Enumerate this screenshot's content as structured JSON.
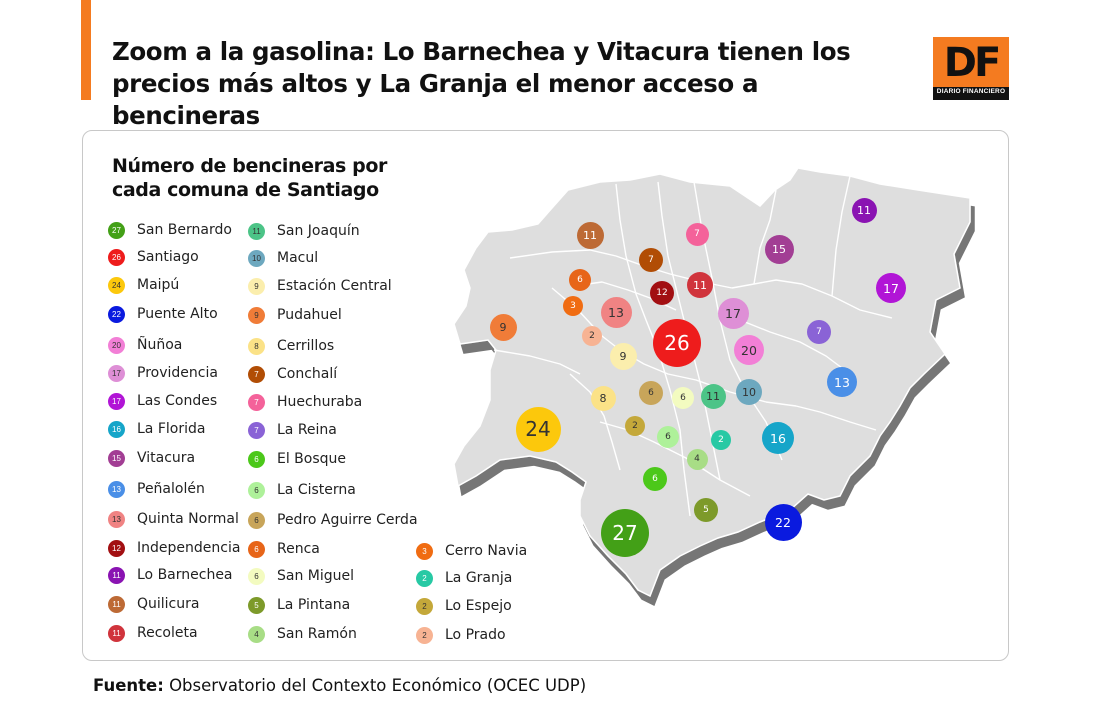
{
  "header": {
    "title_line1": "Zoom a la gasolina: Lo Barnechea y Vitacura tienen los",
    "title_line2": "precios más altos y La Granja el menor acceso a bencineras",
    "accent_color": "#f47b20"
  },
  "logo": {
    "letters": "DF",
    "subtitle": "DIARIO FINANCIERO",
    "color": "#f47b20"
  },
  "legend": {
    "title_line1": "Número de bencineras por",
    "title_line2": "cada comuna de Santiago"
  },
  "comunas": [
    {
      "name": "San Bernardo",
      "count": 27,
      "color": "#43a017"
    },
    {
      "name": "Santiago",
      "count": 26,
      "color": "#ee1c1c"
    },
    {
      "name": "Maipú",
      "count": 24,
      "color": "#fcc80c"
    },
    {
      "name": "Puente Alto",
      "count": 22,
      "color": "#0a1adf"
    },
    {
      "name": "Ñuñoa",
      "count": 20,
      "color": "#f27fd6"
    },
    {
      "name": "Providencia",
      "count": 17,
      "color": "#de8fd6"
    },
    {
      "name": "Las Condes",
      "count": 17,
      "color": "#b115d6"
    },
    {
      "name": "La Florida",
      "count": 16,
      "color": "#16a5c9"
    },
    {
      "name": "Vitacura",
      "count": 15,
      "color": "#a23e94"
    },
    {
      "name": "Peñalolén",
      "count": 13,
      "color": "#4a8fe7"
    },
    {
      "name": "Quinta Normal",
      "count": 13,
      "color": "#f08383"
    },
    {
      "name": "Independencia",
      "count": 12,
      "color": "#a20f12"
    },
    {
      "name": "Lo Barnechea",
      "count": 11,
      "color": "#8a13b2"
    },
    {
      "name": "Quilicura",
      "count": 11,
      "color": "#bd6a35"
    },
    {
      "name": "Recoleta",
      "count": 11,
      "color": "#d0343c"
    },
    {
      "name": "San Joaquín",
      "count": 11,
      "color": "#4cc487"
    },
    {
      "name": "Macul",
      "count": 10,
      "color": "#6da8bf"
    },
    {
      "name": "Estación Central",
      "count": 9,
      "color": "#fbeead"
    },
    {
      "name": "Pudahuel",
      "count": 9,
      "color": "#f07c38"
    },
    {
      "name": "Cerrillos",
      "count": 8,
      "color": "#fbe287"
    },
    {
      "name": "Conchalí",
      "count": 7,
      "color": "#b14d05"
    },
    {
      "name": "Huechuraba",
      "count": 7,
      "color": "#f4629a"
    },
    {
      "name": "La Reina",
      "count": 7,
      "color": "#8a63d6"
    },
    {
      "name": "El Bosque",
      "count": 6,
      "color": "#4cc81a"
    },
    {
      "name": "La Cisterna",
      "count": 6,
      "color": "#aef19a"
    },
    {
      "name": "Pedro Aguirre Cerda",
      "count": 6,
      "color": "#c8a55a"
    },
    {
      "name": "Renca",
      "count": 6,
      "color": "#e76519"
    },
    {
      "name": "San Miguel",
      "count": 6,
      "color": "#f3fbc0"
    },
    {
      "name": "La Pintana",
      "count": 5,
      "color": "#7d9a2a"
    },
    {
      "name": "San Ramón",
      "count": 4,
      "color": "#a8dd86"
    },
    {
      "name": "Cerro Navia",
      "count": 3,
      "color": "#f06c12"
    },
    {
      "name": "La Granja",
      "count": 2,
      "color": "#27c9a4"
    },
    {
      "name": "Lo Espejo",
      "count": 2,
      "color": "#c4a83a"
    },
    {
      "name": "Lo Prado",
      "count": 2,
      "color": "#f7b393"
    }
  ],
  "source": {
    "label": "Fuente:",
    "text": "Observatorio del Contexto Económico (OCEC UDP)"
  }
}
